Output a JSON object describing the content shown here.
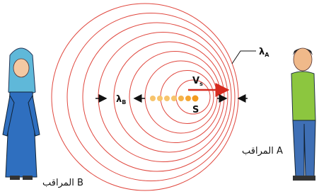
{
  "labels": {
    "observer_b": "المراقب B",
    "observer_a": "المراقب A",
    "lambda_a": {
      "symbol": "λ",
      "subscript": "A"
    },
    "lambda_b": {
      "symbol": "λ",
      "subscript": "B"
    },
    "velocity": {
      "symbol": "V",
      "subscript": "s"
    },
    "source": "S"
  }
}
